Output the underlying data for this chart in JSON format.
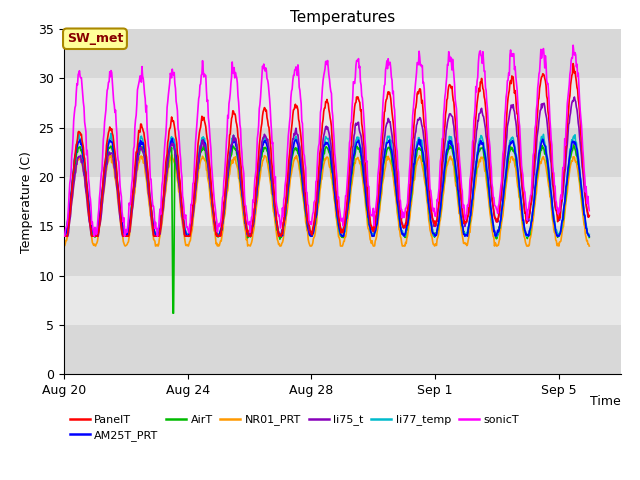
{
  "title": "Temperatures",
  "xlabel": "Time",
  "ylabel": "Temperature (C)",
  "ylim": [
    0,
    35
  ],
  "yticks": [
    0,
    5,
    10,
    15,
    20,
    25,
    30,
    35
  ],
  "xtick_labels": [
    "Aug 20",
    "Aug 24",
    "Aug 28",
    "Sep 1",
    "Sep 5"
  ],
  "series_colors": {
    "PanelT": "#ff0000",
    "AM25T_PRT": "#0000ff",
    "AirT": "#00bb00",
    "NR01_PRT": "#ff9900",
    "li75_t": "#8800bb",
    "li77_temp": "#00bbcc",
    "sonicT": "#ff00ff"
  },
  "legend_box_text": "SW_met",
  "legend_box_facecolor": "#ffff99",
  "legend_box_edgecolor": "#aa8800",
  "legend_box_textcolor": "#880000",
  "band_colors": [
    "#d8d8d8",
    "#e8e8e8"
  ],
  "fig_bg_color": "#ffffff",
  "grid_color": "#ffffff",
  "num_days": 17,
  "points_per_day": 48
}
